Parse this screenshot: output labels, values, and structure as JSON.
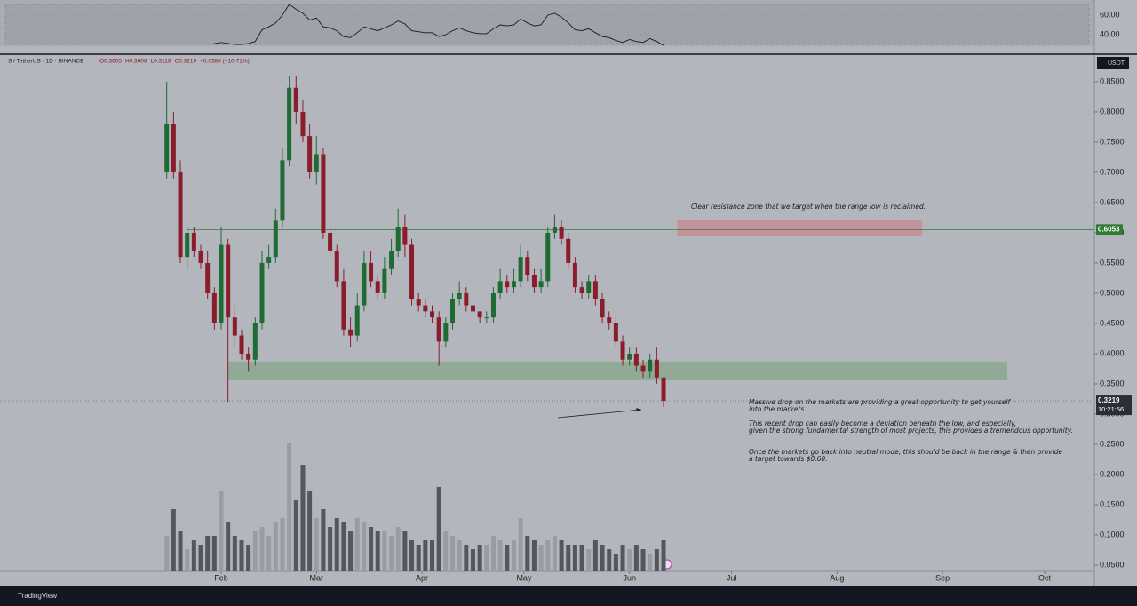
{
  "chart_data": {
    "type": "candlestick",
    "symbol": "S / TetherUS · 1D · BINANCE",
    "ohlc_text": [
      "O0.3605",
      "H0.3606",
      "L0.3118",
      "C0.3219",
      "−0.0386 (−10.71%)"
    ],
    "currency": "USDT",
    "countdown": "10:21:56",
    "x": [
      0,
      2,
      4,
      6,
      8,
      10,
      12,
      14,
      16,
      18,
      20,
      22,
      24,
      26,
      28,
      30,
      32,
      34,
      36,
      38,
      40,
      42,
      44,
      46,
      48,
      50,
      52,
      54,
      56,
      58,
      60,
      62,
      64,
      66,
      68,
      70,
      72,
      74,
      76,
      78,
      80,
      82,
      84,
      86,
      88,
      90,
      92,
      94,
      96,
      98,
      100,
      102,
      104,
      106,
      108,
      110,
      112,
      114,
      116,
      118,
      120,
      122,
      124,
      126,
      128,
      130,
      132,
      134,
      136,
      138,
      140,
      142,
      144,
      146
    ],
    "open": [
      0.7,
      0.78,
      0.7,
      0.56,
      0.6,
      0.57,
      0.55,
      0.5,
      0.45,
      0.58,
      0.46,
      0.43,
      0.4,
      0.39,
      0.45,
      0.55,
      0.56,
      0.62,
      0.72,
      0.84,
      0.8,
      0.76,
      0.7,
      0.73,
      0.6,
      0.57,
      0.52,
      0.44,
      0.43,
      0.48,
      0.55,
      0.52,
      0.5,
      0.54,
      0.57,
      0.61,
      0.58,
      0.49,
      0.48,
      0.47,
      0.46,
      0.42,
      0.45,
      0.49,
      0.5,
      0.48,
      0.47,
      0.46,
      0.46,
      0.5,
      0.52,
      0.51,
      0.52,
      0.56,
      0.53,
      0.51,
      0.52,
      0.6,
      0.61,
      0.59,
      0.55,
      0.51,
      0.5,
      0.52,
      0.49,
      0.46,
      0.45,
      0.42,
      0.39,
      0.4,
      0.38,
      0.37,
      0.39,
      0.3605
    ],
    "high": [
      0.85,
      0.8,
      0.72,
      0.61,
      0.61,
      0.58,
      0.57,
      0.51,
      0.61,
      0.59,
      0.48,
      0.44,
      0.41,
      0.46,
      0.57,
      0.58,
      0.64,
      0.74,
      0.86,
      0.86,
      0.82,
      0.78,
      0.76,
      0.74,
      0.61,
      0.58,
      0.54,
      0.46,
      0.5,
      0.57,
      0.57,
      0.53,
      0.56,
      0.59,
      0.64,
      0.63,
      0.59,
      0.5,
      0.49,
      0.48,
      0.47,
      0.46,
      0.5,
      0.52,
      0.51,
      0.49,
      0.47,
      0.47,
      0.51,
      0.54,
      0.53,
      0.54,
      0.58,
      0.57,
      0.54,
      0.54,
      0.61,
      0.63,
      0.62,
      0.6,
      0.56,
      0.52,
      0.53,
      0.53,
      0.5,
      0.47,
      0.46,
      0.43,
      0.41,
      0.41,
      0.39,
      0.4,
      0.41,
      0.3606
    ],
    "low": [
      0.69,
      0.69,
      0.55,
      0.54,
      0.56,
      0.54,
      0.49,
      0.44,
      0.44,
      0.32,
      0.41,
      0.39,
      0.37,
      0.38,
      0.44,
      0.54,
      0.55,
      0.61,
      0.71,
      0.78,
      0.75,
      0.69,
      0.68,
      0.59,
      0.56,
      0.51,
      0.43,
      0.41,
      0.42,
      0.47,
      0.51,
      0.49,
      0.49,
      0.53,
      0.56,
      0.56,
      0.48,
      0.47,
      0.46,
      0.45,
      0.38,
      0.41,
      0.44,
      0.48,
      0.47,
      0.46,
      0.45,
      0.45,
      0.45,
      0.49,
      0.5,
      0.5,
      0.51,
      0.52,
      0.5,
      0.5,
      0.51,
      0.59,
      0.58,
      0.54,
      0.5,
      0.49,
      0.49,
      0.48,
      0.45,
      0.44,
      0.41,
      0.38,
      0.38,
      0.37,
      0.36,
      0.36,
      0.35,
      0.3118
    ],
    "close": [
      0.78,
      0.7,
      0.56,
      0.6,
      0.57,
      0.55,
      0.5,
      0.45,
      0.58,
      0.46,
      0.43,
      0.4,
      0.39,
      0.45,
      0.55,
      0.56,
      0.62,
      0.72,
      0.84,
      0.8,
      0.76,
      0.7,
      0.73,
      0.6,
      0.57,
      0.52,
      0.44,
      0.43,
      0.48,
      0.55,
      0.52,
      0.5,
      0.54,
      0.57,
      0.61,
      0.58,
      0.49,
      0.48,
      0.47,
      0.46,
      0.42,
      0.45,
      0.49,
      0.5,
      0.48,
      0.47,
      0.46,
      0.46,
      0.5,
      0.52,
      0.51,
      0.52,
      0.56,
      0.53,
      0.51,
      0.52,
      0.6,
      0.61,
      0.59,
      0.55,
      0.51,
      0.5,
      0.52,
      0.49,
      0.46,
      0.45,
      0.42,
      0.39,
      0.4,
      0.38,
      0.37,
      0.39,
      0.3605,
      0.3219
    ],
    "volume": [
      40,
      70,
      45,
      25,
      35,
      30,
      40,
      40,
      90,
      55,
      40,
      35,
      30,
      45,
      50,
      40,
      55,
      60,
      145,
      80,
      120,
      90,
      60,
      70,
      50,
      60,
      55,
      45,
      60,
      55,
      50,
      45,
      45,
      40,
      50,
      45,
      35,
      30,
      35,
      35,
      95,
      45,
      40,
      35,
      30,
      25,
      30,
      30,
      40,
      35,
      30,
      35,
      60,
      40,
      35,
      30,
      35,
      40,
      35,
      30,
      30,
      30,
      25,
      35,
      30,
      25,
      20,
      30,
      25,
      30,
      25,
      20,
      25,
      35
    ],
    "volume_lim": [
      0,
      160
    ],
    "up_color": "#1f6b34",
    "down_color": "#8a1c2b",
    "xlim": [
      -49,
      272.6
    ],
    "xticks": [
      {
        "value": 16,
        "label": "Feb"
      },
      {
        "value": 44,
        "label": "Mar"
      },
      {
        "value": 75,
        "label": "Apr"
      },
      {
        "value": 105,
        "label": "May"
      },
      {
        "value": 136,
        "label": "Jun"
      },
      {
        "value": 166,
        "label": "Jul"
      },
      {
        "value": 197,
        "label": "Aug"
      },
      {
        "value": 228,
        "label": "Sep"
      },
      {
        "value": 258,
        "label": "Oct"
      }
    ],
    "ylim": [
      0.0147,
      0.894
    ],
    "yticks": [
      {
        "value": 0.05,
        "label": "0.0500"
      },
      {
        "value": 0.1,
        "label": "0.1000"
      },
      {
        "value": 0.15,
        "label": "0.1500"
      },
      {
        "value": 0.2,
        "label": "0.2000"
      },
      {
        "value": 0.25,
        "label": "0.2500"
      },
      {
        "value": 0.3,
        "label": "0.3000"
      },
      {
        "value": 0.35,
        "label": "0.3500"
      },
      {
        "value": 0.4,
        "label": "0.4000"
      },
      {
        "value": 0.45,
        "label": "0.4500"
      },
      {
        "value": 0.5,
        "label": "0.5000"
      },
      {
        "value": 0.55,
        "label": "0.5500"
      },
      {
        "value": 0.6,
        "label": "0.6000"
      },
      {
        "value": 0.65,
        "label": "0.6500"
      },
      {
        "value": 0.7,
        "label": "0.7000"
      },
      {
        "value": 0.75,
        "label": "0.7500"
      },
      {
        "value": 0.8,
        "label": "0.8000"
      },
      {
        "value": 0.85,
        "label": "0.8500"
      }
    ],
    "level": {
      "value": 0.6053,
      "x_start": 6,
      "color": "#2e7d32"
    },
    "zones": [
      {
        "xlim": [
          150,
          222
        ],
        "ylim": [
          0.594,
          0.6206
        ],
        "color": "#c98a92"
      },
      {
        "xlim": [
          18,
          247
        ],
        "ylim": [
          0.356,
          0.387
        ],
        "color": "#88a88c"
      }
    ],
    "annotations": [
      "Clear resistance zone that we target when the range low is reclaimed.",
      "Massive drop on the markets are providing a great opportunity to get yourself",
      "into the markets.",
      "This recent drop can easily become a deviation beneath the low, and especially,",
      "given the strong fundamental strength of most projects, this provides a tremendous opportunity.",
      "Once the markets go back into neutral mode, this should be back in the range & then provide",
      "a target towards $0.60."
    ],
    "rsi": {
      "values": [
        null,
        null,
        null,
        null,
        null,
        null,
        null,
        31,
        32,
        31,
        30,
        30,
        31,
        33,
        45,
        48,
        52,
        60,
        71,
        66,
        62,
        55,
        57,
        48,
        47,
        44,
        38,
        37,
        42,
        48,
        46,
        44,
        47,
        50,
        54,
        51,
        44,
        43,
        42,
        42,
        38,
        40,
        44,
        47,
        44,
        42,
        41,
        41,
        46,
        50,
        49,
        50,
        56,
        52,
        49,
        50,
        60,
        62,
        58,
        52,
        45,
        44,
        46,
        42,
        38,
        37,
        34,
        32,
        35,
        33,
        32,
        36,
        33,
        29
      ],
      "ylim": [
        28.2,
        75.5
      ],
      "yticks": [
        {
          "value": 40,
          "label": "40.00"
        },
        {
          "value": 60,
          "label": "60.00"
        }
      ],
      "color": "#1a1a1a"
    }
  },
  "brand": "TradingView"
}
